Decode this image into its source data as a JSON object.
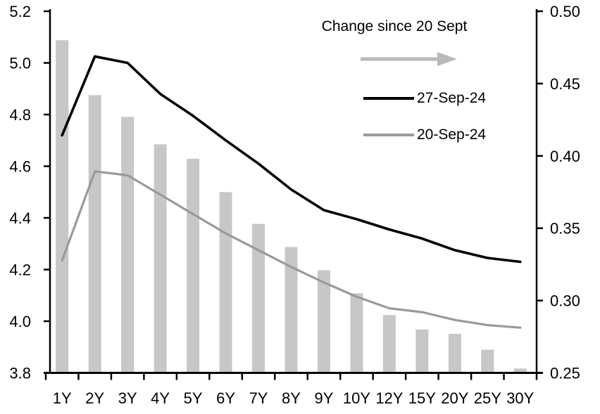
{
  "chart_data": {
    "type": "combo_bar_line",
    "title": "",
    "categories": [
      "1Y",
      "2Y",
      "3Y",
      "4Y",
      "5Y",
      "6Y",
      "7Y",
      "8Y",
      "9Y",
      "10Y",
      "12Y",
      "15Y",
      "20Y",
      "25Y",
      "30Y"
    ],
    "series": [
      {
        "name": "Change since 20 Sept",
        "type": "bar",
        "axis": "right",
        "color": "#c7c7c7",
        "values": [
          0.48,
          0.442,
          0.427,
          0.408,
          0.398,
          0.375,
          0.353,
          0.337,
          0.321,
          0.305,
          0.29,
          0.28,
          0.277,
          0.266,
          0.253
        ]
      },
      {
        "name": "27-Sep-24",
        "type": "line",
        "axis": "left",
        "color": "#000000",
        "values": [
          4.72,
          5.025,
          5.0,
          4.88,
          4.795,
          4.7,
          4.61,
          4.51,
          4.43,
          4.395,
          4.355,
          4.32,
          4.275,
          4.245,
          4.23
        ]
      },
      {
        "name": "20-Sep-24",
        "type": "line",
        "axis": "left",
        "color": "#9a9a9a",
        "values": [
          4.235,
          4.58,
          4.565,
          4.49,
          4.415,
          4.34,
          4.275,
          4.21,
          4.15,
          4.095,
          4.05,
          4.035,
          4.005,
          3.985,
          3.975
        ]
      }
    ],
    "left_axis": {
      "min": 3.8,
      "max": 5.2,
      "tick_step": 0.2,
      "tick_labels": [
        "5.2",
        "5.0",
        "4.8",
        "4.6",
        "4.4",
        "4.2",
        "4.0",
        "3.8"
      ]
    },
    "right_axis": {
      "min": 0.25,
      "max": 0.5,
      "tick_step": 0.05,
      "tick_labels": [
        "0.50",
        "0.45",
        "0.40",
        "0.35",
        "0.30",
        "0.25"
      ]
    },
    "grid": false,
    "legend_position": "top-center-inside",
    "legend": {
      "title": "Change since 20 Sept",
      "arrow_color": "#b9b9b9",
      "items": [
        {
          "label": "27-Sep-24",
          "color": "#000000"
        },
        {
          "label": "20-Sep-24",
          "color": "#9a9a9a"
        }
      ]
    }
  }
}
